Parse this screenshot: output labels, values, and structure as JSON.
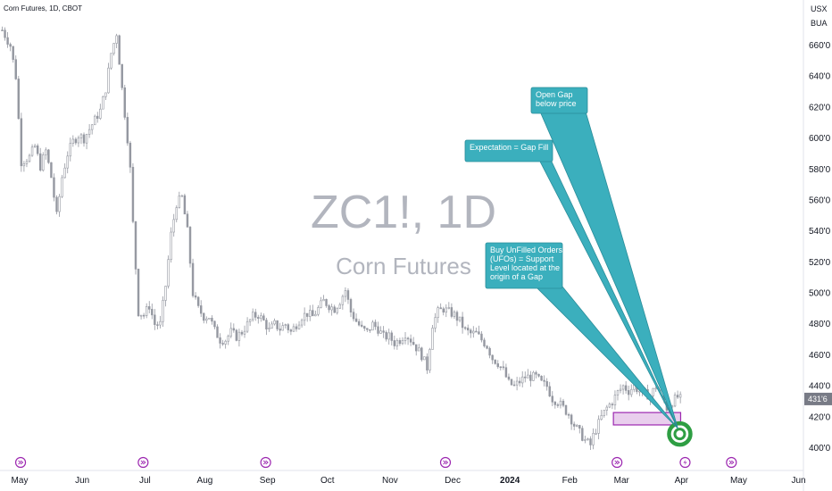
{
  "header": {
    "title": "Corn Futures, 1D, CBOT"
  },
  "watermark": {
    "symbol": "ZC1!, 1D",
    "name": "Corn Futures"
  },
  "price_scale": {
    "unit_line1": "USX",
    "unit_line2": "BUA",
    "last_price_label": "431'6"
  },
  "callouts": [
    {
      "id": "open-gap",
      "lines": [
        "Open Gap",
        "below price"
      ]
    },
    {
      "id": "expectation",
      "lines": [
        "Expectation = Gap Fill"
      ]
    },
    {
      "id": "ufo",
      "lines": [
        "Buy UnFilled Orders",
        "(UFOs) = Support",
        "Level located at the",
        "origin of a Gap"
      ]
    }
  ],
  "colors": {
    "candle": "#9598a1",
    "callout_fill": "#3bafbd",
    "callout_border": "#2a8c99",
    "gap_zone_fill": "#e1bee7",
    "gap_zone_border": "#9c27b0",
    "target_ring": "#2e9e43",
    "event_icon": "#9c27b0",
    "last_price_bg": "#787b86"
  },
  "chart_data": {
    "type": "candlestick",
    "title": "Corn Futures, 1D, CBOT",
    "ylim": [
      395,
      675
    ],
    "yticks": [
      400,
      420,
      440,
      460,
      480,
      500,
      520,
      540,
      560,
      580,
      600,
      620,
      640,
      660
    ],
    "ytick_labels": [
      "400'0",
      "420'0",
      "440'0",
      "460'0",
      "480'0",
      "500'0",
      "520'0",
      "540'0",
      "560'0",
      "580'0",
      "600'0",
      "620'0",
      "640'0",
      "660'0"
    ],
    "xtick_labels": [
      "May",
      "Jun",
      "Jul",
      "Aug",
      "Sep",
      "Oct",
      "Nov",
      "Dec",
      "2024",
      "Feb",
      "Mar",
      "Apr",
      "May",
      "Jun"
    ],
    "xtick_positions": [
      0,
      23,
      46,
      68,
      91,
      113,
      136,
      159,
      180,
      202,
      221,
      243,
      264,
      286
    ],
    "x_max": 295,
    "bold_tick": "2024",
    "last_price": 431.75,
    "gap_zone": {
      "low": 415,
      "high": 423,
      "x_start": 219,
      "x_end": 245
    },
    "target_price": 408,
    "target_x": 245,
    "event_markers_x": [
      1,
      46,
      91,
      157,
      220,
      245,
      262
    ],
    "close_path": [
      [
        0,
        670
      ],
      [
        3,
        660
      ],
      [
        5,
        640
      ],
      [
        7,
        585
      ],
      [
        10,
        588
      ],
      [
        12,
        595
      ],
      [
        14,
        582
      ],
      [
        16,
        592
      ],
      [
        18,
        575
      ],
      [
        20,
        550
      ],
      [
        22,
        575
      ],
      [
        24,
        590
      ],
      [
        26,
        598
      ],
      [
        28,
        602
      ],
      [
        30,
        600
      ],
      [
        32,
        606
      ],
      [
        34,
        612
      ],
      [
        36,
        618
      ],
      [
        38,
        632
      ],
      [
        40,
        655
      ],
      [
        42,
        668
      ],
      [
        44,
        632
      ],
      [
        46,
        600
      ],
      [
        47,
        580
      ],
      [
        48,
        545
      ],
      [
        50,
        488
      ],
      [
        52,
        486
      ],
      [
        54,
        492
      ],
      [
        56,
        480
      ],
      [
        58,
        480
      ],
      [
        60,
        505
      ],
      [
        62,
        538
      ],
      [
        64,
        558
      ],
      [
        66,
        562
      ],
      [
        68,
        540
      ],
      [
        70,
        500
      ],
      [
        72,
        490
      ],
      [
        74,
        485
      ],
      [
        76,
        485
      ],
      [
        78,
        476
      ],
      [
        80,
        470
      ],
      [
        82,
        470
      ],
      [
        84,
        475
      ],
      [
        86,
        472
      ],
      [
        88,
        475
      ],
      [
        90,
        480
      ],
      [
        92,
        485
      ],
      [
        94,
        486
      ],
      [
        96,
        482
      ],
      [
        98,
        476
      ],
      [
        100,
        480
      ],
      [
        102,
        477
      ],
      [
        104,
        480
      ],
      [
        106,
        475
      ],
      [
        108,
        480
      ],
      [
        110,
        485
      ],
      [
        112,
        487
      ],
      [
        114,
        485
      ],
      [
        116,
        490
      ],
      [
        118,
        495
      ],
      [
        120,
        492
      ],
      [
        122,
        490
      ],
      [
        124,
        495
      ],
      [
        126,
        502
      ],
      [
        128,
        488
      ],
      [
        130,
        482
      ],
      [
        132,
        477
      ],
      [
        134,
        475
      ],
      [
        136,
        480
      ],
      [
        138,
        477
      ],
      [
        140,
        472
      ],
      [
        142,
        472
      ],
      [
        144,
        468
      ],
      [
        146,
        470
      ],
      [
        148,
        474
      ],
      [
        150,
        470
      ],
      [
        152,
        465
      ],
      [
        154,
        460
      ],
      [
        156,
        452
      ],
      [
        158,
        480
      ],
      [
        160,
        488
      ],
      [
        162,
        490
      ],
      [
        164,
        488
      ],
      [
        166,
        486
      ],
      [
        168,
        482
      ],
      [
        170,
        476
      ],
      [
        172,
        474
      ],
      [
        174,
        474
      ],
      [
        176,
        470
      ],
      [
        178,
        466
      ],
      [
        180,
        458
      ],
      [
        182,
        455
      ],
      [
        184,
        450
      ],
      [
        186,
        442
      ],
      [
        188,
        440
      ],
      [
        190,
        443
      ],
      [
        192,
        446
      ],
      [
        194,
        446
      ],
      [
        196,
        446
      ],
      [
        198,
        442
      ],
      [
        200,
        440
      ],
      [
        202,
        432
      ],
      [
        204,
        430
      ],
      [
        206,
        426
      ],
      [
        208,
        422
      ],
      [
        210,
        415
      ],
      [
        212,
        410
      ],
      [
        214,
        405
      ],
      [
        216,
        402
      ],
      [
        217,
        408
      ],
      [
        218,
        412
      ],
      [
        220,
        420
      ],
      [
        222,
        426
      ],
      [
        224,
        430
      ],
      [
        226,
        436
      ],
      [
        228,
        440
      ],
      [
        230,
        437
      ],
      [
        232,
        440
      ],
      [
        234,
        437
      ],
      [
        236,
        435
      ],
      [
        238,
        434
      ],
      [
        240,
        440
      ],
      [
        242,
        436
      ],
      [
        244,
        426
      ],
      [
        246,
        430
      ],
      [
        248,
        433
      ],
      [
        249,
        431.75
      ]
    ]
  }
}
